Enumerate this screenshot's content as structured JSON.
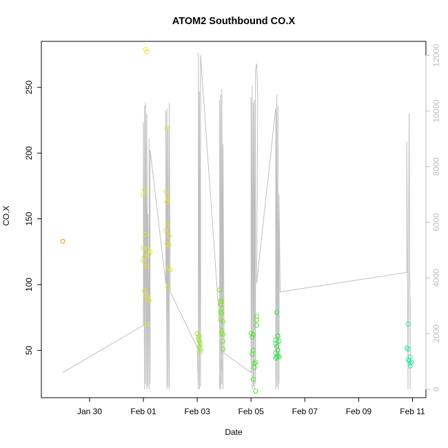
{
  "chart_data": {
    "type": "scatter",
    "title": "ATOM2 Southbound CO.X",
    "xlabel": "Date",
    "ylabel": "CO.X",
    "x_axis": {
      "type": "date",
      "range": [
        "2016-01-28T05:00",
        "2016-02-11T12:00"
      ],
      "ticks": [
        "2016-01-30",
        "2016-02-01",
        "2016-02-03",
        "2016-02-05",
        "2016-02-07",
        "2016-02-09",
        "2016-02-11"
      ],
      "tick_labels": [
        "Jan 30",
        "Feb 01",
        "Feb 03",
        "Feb 05",
        "Feb 07",
        "Feb 09",
        "Feb 11"
      ]
    },
    "y_axis": {
      "range": [
        14,
        285
      ],
      "ticks": [
        50,
        100,
        150,
        200,
        250
      ]
    },
    "y2_axis": {
      "range": [
        -300,
        12500
      ],
      "ticks": [
        0,
        2000,
        4000,
        6000,
        8000,
        10000,
        12000
      ],
      "color": "#bebebe"
    },
    "grid": false,
    "colors": {
      "line": "#bebebe",
      "axis": "#000000"
    },
    "series": [
      {
        "kind": "points",
        "color": "#ff8c00",
        "points": [
          [
            "2016-01-29T00:00",
            133
          ]
        ]
      },
      {
        "kind": "points",
        "color": "#e6e62a",
        "points": [
          [
            "2016-02-01T02:00",
            279
          ],
          [
            "2016-02-01T03:00",
            277
          ],
          [
            "2016-02-01T01:00",
            172
          ],
          [
            "2016-02-01T00:00",
            168
          ],
          [
            "2016-02-01T02:00",
            138
          ],
          [
            "2016-02-01T00:00",
            128
          ],
          [
            "2016-02-01T04:00",
            127
          ],
          [
            "2016-02-01T06:00",
            125
          ],
          [
            "2016-02-01T01:00",
            121
          ],
          [
            "2016-02-01T05:00",
            123
          ],
          [
            "2016-02-01T00:00",
            118
          ],
          [
            "2016-02-01T03:00",
            114
          ],
          [
            "2016-02-01T01:00",
            95
          ],
          [
            "2016-02-01T02:00",
            92
          ],
          [
            "2016-02-01T04:00",
            89
          ],
          [
            "2016-02-01T05:00",
            88
          ],
          [
            "2016-02-01T03:00",
            70
          ]
        ]
      },
      {
        "kind": "points",
        "color": "#dfe62a",
        "points": [
          [
            "2016-02-01T21:00",
            219
          ],
          [
            "2016-02-01T20:00",
            171
          ],
          [
            "2016-02-01T22:00",
            165
          ],
          [
            "2016-02-01T21:00",
            163
          ],
          [
            "2016-02-01T22:00",
            146
          ],
          [
            "2016-02-01T20:00",
            141
          ],
          [
            "2016-02-01T23:00",
            137
          ],
          [
            "2016-02-01T21:00",
            131
          ],
          [
            "2016-02-01T23:00",
            130
          ],
          [
            "2016-02-01T22:00",
            113
          ],
          [
            "2016-02-02T00:00",
            111
          ],
          [
            "2016-02-01T22:00",
            98
          ]
        ]
      },
      {
        "kind": "points",
        "color": "#9ee62a",
        "points": [
          [
            "2016-02-03T00:00",
            63
          ],
          [
            "2016-02-03T01:00",
            60
          ],
          [
            "2016-02-03T02:00",
            61
          ],
          [
            "2016-02-03T01:00",
            58
          ],
          [
            "2016-02-03T02:00",
            57
          ],
          [
            "2016-02-03T03:00",
            55
          ],
          [
            "2016-02-03T02:00",
            53
          ],
          [
            "2016-02-03T03:00",
            51
          ],
          [
            "2016-02-03T03:00",
            49
          ]
        ]
      },
      {
        "kind": "points",
        "color": "#7ae62a",
        "points": [
          [
            "2016-02-03T20:00",
            96
          ],
          [
            "2016-02-03T21:00",
            88
          ],
          [
            "2016-02-03T22:00",
            87
          ],
          [
            "2016-02-03T21:00",
            85
          ],
          [
            "2016-02-03T22:00",
            82
          ],
          [
            "2016-02-03T21:00",
            79
          ],
          [
            "2016-02-03T22:00",
            78
          ],
          [
            "2016-02-03T21:00",
            73
          ],
          [
            "2016-02-03T23:00",
            72
          ],
          [
            "2016-02-03T22:00",
            65
          ],
          [
            "2016-02-03T22:00",
            63
          ],
          [
            "2016-02-03T23:00",
            62
          ],
          [
            "2016-02-03T23:00",
            57
          ],
          [
            "2016-02-03T23:00",
            51
          ]
        ]
      },
      {
        "kind": "points",
        "color": "#4ee62a",
        "points": [
          [
            "2016-02-05T00:00",
            63
          ],
          [
            "2016-02-05T02:00",
            62
          ],
          [
            "2016-02-05T01:00",
            60
          ],
          [
            "2016-02-05T02:00",
            50
          ],
          [
            "2016-02-05T01:00",
            47
          ],
          [
            "2016-02-05T04:00",
            41
          ],
          [
            "2016-02-05T03:00",
            40
          ],
          [
            "2016-02-05T03:00",
            37
          ],
          [
            "2016-02-05T02:00",
            28
          ],
          [
            "2016-02-05T04:00",
            19
          ],
          [
            "2016-02-05T05:00",
            76
          ],
          [
            "2016-02-05T05:00",
            73
          ],
          [
            "2016-02-05T05:00",
            69
          ]
        ]
      },
      {
        "kind": "points",
        "color": "#2ee64a",
        "points": [
          [
            "2016-02-05T23:00",
            79
          ],
          [
            "2016-02-05T22:00",
            58
          ],
          [
            "2016-02-06T00:00",
            61
          ],
          [
            "2016-02-06T01:00",
            57
          ],
          [
            "2016-02-05T22:00",
            55
          ],
          [
            "2016-02-05T23:00",
            53
          ],
          [
            "2016-02-06T00:00",
            50
          ],
          [
            "2016-02-05T22:00",
            48
          ],
          [
            "2016-02-05T23:00",
            45
          ],
          [
            "2016-02-06T00:00",
            46
          ],
          [
            "2016-02-06T01:00",
            45
          ],
          [
            "2016-02-05T22:00",
            44
          ]
        ]
      },
      {
        "kind": "points",
        "color": "#2ae6aa",
        "points": [
          [
            "2016-02-10T20:00",
            70
          ],
          [
            "2016-02-10T19:00",
            52
          ],
          [
            "2016-02-10T20:00",
            51
          ],
          [
            "2016-02-10T22:00",
            45
          ],
          [
            "2016-02-10T20:00",
            43
          ],
          [
            "2016-02-10T21:00",
            42
          ],
          [
            "2016-02-10T23:00",
            41
          ],
          [
            "2016-02-10T22:00",
            40
          ],
          [
            "2016-02-10T22:00",
            38
          ]
        ]
      },
      {
        "kind": "line",
        "axis": "right",
        "color": "#bebebe",
        "points": [
          [
            "2016-01-29T00:00",
            600
          ],
          [
            "2016-02-01T00:00",
            2300
          ],
          [
            "2016-02-01T00:00",
            9600
          ],
          [
            "2016-02-01T01:00",
            0
          ],
          [
            "2016-02-01T01:00",
            10200
          ],
          [
            "2016-02-01T02:00",
            200
          ],
          [
            "2016-02-01T02:00",
            10300
          ],
          [
            "2016-02-01T03:00",
            0
          ],
          [
            "2016-02-01T03:00",
            9900
          ],
          [
            "2016-02-01T04:00",
            100
          ],
          [
            "2016-02-01T04:00",
            6300
          ],
          [
            "2016-02-01T05:00",
            0
          ],
          [
            "2016-02-01T05:00",
            9000
          ],
          [
            "2016-02-01T06:00",
            200
          ],
          [
            "2016-02-01T06:00",
            8600
          ],
          [
            "2016-02-01T20:00",
            3800
          ],
          [
            "2016-02-01T20:00",
            10000
          ],
          [
            "2016-02-01T21:00",
            0
          ],
          [
            "2016-02-01T21:00",
            10100
          ],
          [
            "2016-02-01T22:00",
            100
          ],
          [
            "2016-02-01T22:00",
            9400
          ],
          [
            "2016-02-01T23:00",
            0
          ],
          [
            "2016-02-01T23:00",
            10300
          ],
          [
            "2016-02-02T00:00",
            3500
          ],
          [
            "2016-02-03T00:00",
            1500
          ],
          [
            "2016-02-03T01:00",
            0
          ],
          [
            "2016-02-03T01:00",
            10800
          ],
          [
            "2016-02-03T01:00",
            12100
          ],
          [
            "2016-02-03T02:00",
            0
          ],
          [
            "2016-02-03T02:00",
            10700
          ],
          [
            "2016-02-03T03:00",
            100
          ],
          [
            "2016-02-03T03:00",
            12000
          ],
          [
            "2016-02-03T22:00",
            1200
          ],
          [
            "2016-02-03T20:00",
            0
          ],
          [
            "2016-02-03T20:00",
            10400
          ],
          [
            "2016-02-03T21:00",
            0
          ],
          [
            "2016-02-03T21:00",
            10600
          ],
          [
            "2016-02-03T22:00",
            200
          ],
          [
            "2016-02-03T22:00",
            10800
          ],
          [
            "2016-02-03T23:00",
            0
          ],
          [
            "2016-02-03T23:00",
            8800
          ],
          [
            "2016-02-04T00:00",
            1300
          ],
          [
            "2016-02-05T00:00",
            600
          ],
          [
            "2016-02-05T00:00",
            10500
          ],
          [
            "2016-02-05T01:00",
            0
          ],
          [
            "2016-02-05T01:00",
            10900
          ],
          [
            "2016-02-05T02:00",
            100
          ],
          [
            "2016-02-05T02:00",
            10300
          ],
          [
            "2016-02-05T03:00",
            0
          ],
          [
            "2016-02-05T03:00",
            10400
          ],
          [
            "2016-02-05T04:00",
            200
          ],
          [
            "2016-02-05T04:00",
            11500
          ],
          [
            "2016-02-05T05:00",
            11700
          ],
          [
            "2016-02-05T06:00",
            10500
          ],
          [
            "2016-02-05T05:00",
            3800
          ],
          [
            "2016-02-05T22:00",
            10100
          ],
          [
            "2016-02-05T22:00",
            0
          ],
          [
            "2016-02-05T23:00",
            10600
          ],
          [
            "2016-02-05T23:00",
            100
          ],
          [
            "2016-02-06T00:00",
            10200
          ],
          [
            "2016-02-06T00:00",
            0
          ],
          [
            "2016-02-06T01:00",
            7000
          ],
          [
            "2016-02-06T01:00",
            200
          ],
          [
            "2016-02-06T01:00",
            6900
          ],
          [
            "2016-02-06T02:00",
            3500
          ],
          [
            "2016-02-10T19:00",
            4200
          ],
          [
            "2016-02-10T19:00",
            8900
          ],
          [
            "2016-02-10T20:00",
            0
          ],
          [
            "2016-02-10T21:00",
            9900
          ],
          [
            "2016-02-10T22:00",
            0
          ],
          [
            "2016-02-10T22:00",
            3300
          ]
        ]
      }
    ]
  }
}
